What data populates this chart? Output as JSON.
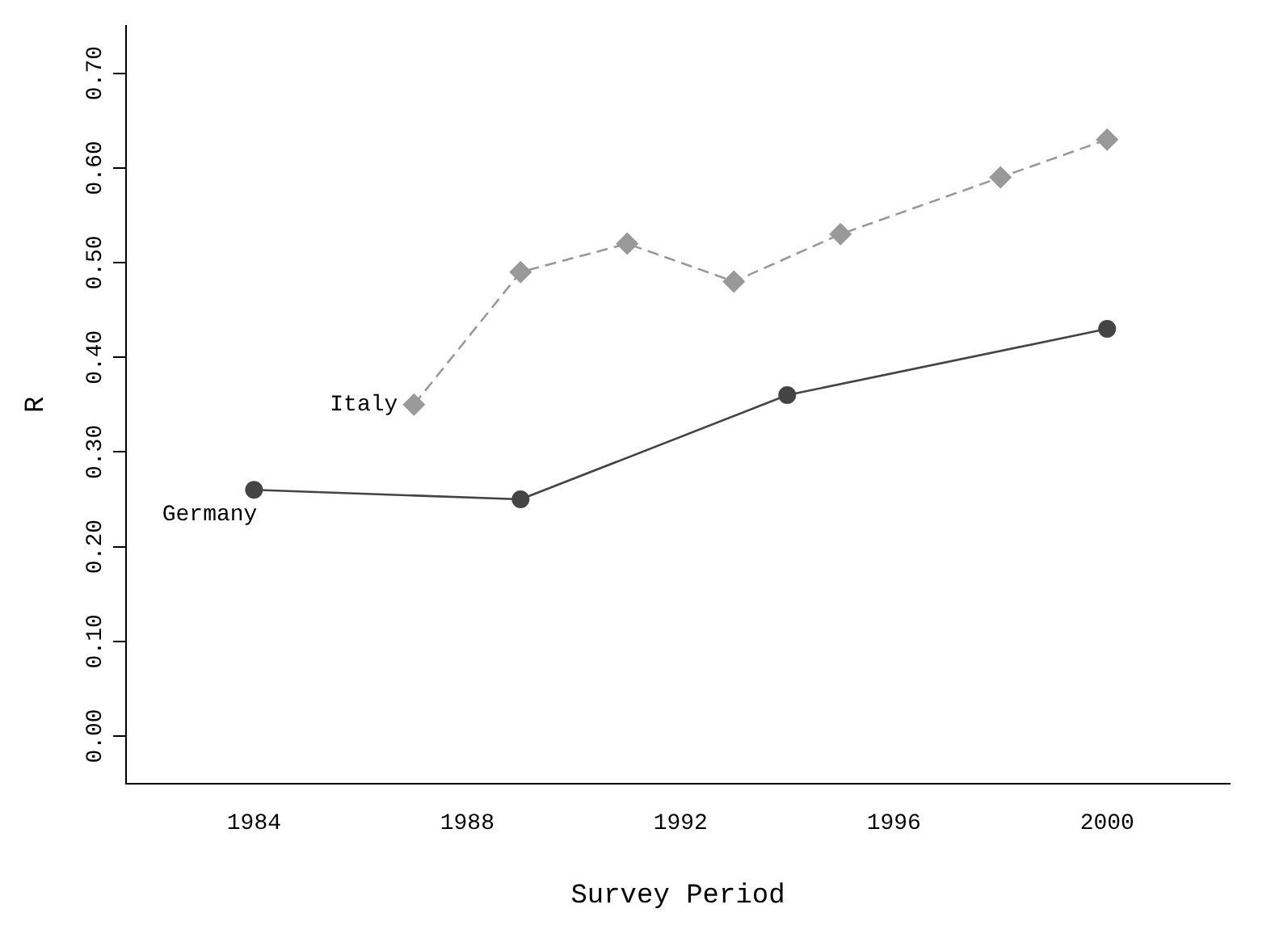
{
  "chart_data": {
    "type": "line",
    "xlabel": "Survey Period",
    "ylabel": "R",
    "xlim": [
      1981.6,
      2002.3
    ],
    "xticks": [
      1984,
      1988,
      1992,
      1996,
      2000
    ],
    "ylim": [
      -0.05,
      0.75
    ],
    "yticks": [
      {
        "value": 0,
        "label": "0.00"
      },
      {
        "value": 0.1,
        "label": "0.10"
      },
      {
        "value": 0.2,
        "label": "0.20"
      },
      {
        "value": 0.3,
        "label": "0.30"
      },
      {
        "value": 0.4,
        "label": "0.40"
      },
      {
        "value": 0.5,
        "label": "0.50"
      },
      {
        "value": 0.6,
        "label": "0.60"
      },
      {
        "value": 0.7,
        "label": "0.70"
      }
    ],
    "grid": false,
    "series": [
      {
        "name": "Germany",
        "color": "#444444",
        "marker": "circle",
        "line_style": "solid",
        "x": [
          1984,
          1989,
          1994,
          2000
        ],
        "values": [
          0.26,
          0.25,
          0.36,
          0.43
        ]
      },
      {
        "name": "Italy",
        "color": "#999999",
        "marker": "diamond",
        "line_style": "dashed",
        "x": [
          1987,
          1989,
          1991,
          1993,
          1995,
          1998,
          2000
        ],
        "values": [
          0.35,
          0.49,
          0.52,
          0.48,
          0.53,
          0.59,
          0.63
        ]
      }
    ]
  }
}
